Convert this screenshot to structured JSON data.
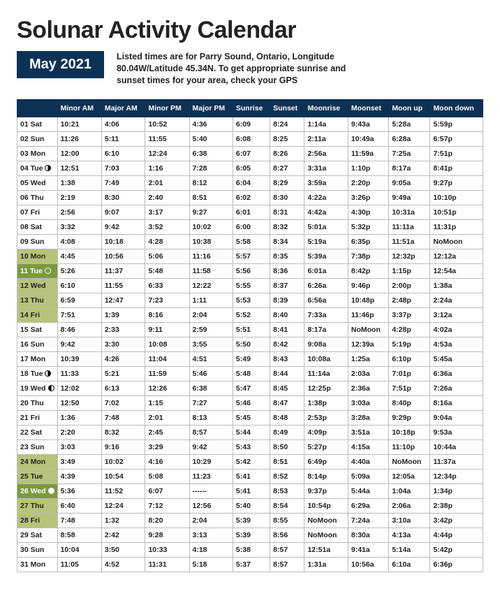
{
  "title": "Solunar Activity Calendar",
  "month_badge": "May 2021",
  "subtitle": {
    "line1": "Listed times are for Parry Sound, Ontario, Longitude",
    "line2": "80.04W/Latitude 45.34N.  To get appropriate sunrise and",
    "line3": "sunset times for your area, check your GPS"
  },
  "columns": [
    "",
    "Minor AM",
    "Major AM",
    "Minor PM",
    "Major PM",
    "Sunrise",
    "Sunset",
    "Moonrise",
    "Moonset",
    "Moon up",
    "Moon down"
  ],
  "rows": [
    {
      "day": "01 Sat",
      "phase": "",
      "hl": "",
      "c": [
        "10:21",
        "4:06",
        "10:52",
        "4:36",
        "6:09",
        "8:24",
        "1:14a",
        "9:43a",
        "5:28a",
        "5:59p"
      ]
    },
    {
      "day": "02 Sun",
      "phase": "",
      "hl": "",
      "c": [
        "11:26",
        "5:11",
        "11:55",
        "5:40",
        "6:08",
        "8:25",
        "2:11a",
        "10:49a",
        "6:28a",
        "6:57p"
      ]
    },
    {
      "day": "03 Mon",
      "phase": "",
      "hl": "",
      "c": [
        "12:00",
        "6:10",
        "12:24",
        "6:38",
        "6:07",
        "8:26",
        "2:56a",
        "11:59a",
        "7:25a",
        "7:51p"
      ]
    },
    {
      "day": "04 Tue",
      "phase": "last",
      "hl": "",
      "c": [
        "12:51",
        "7:03",
        "1:16",
        "7:28",
        "6:05",
        "8:27",
        "3:31a",
        "1:10p",
        "8:17a",
        "8:41p"
      ]
    },
    {
      "day": "05 Wed",
      "phase": "",
      "hl": "",
      "c": [
        "1:38",
        "7:49",
        "2:01",
        "8:12",
        "6:04",
        "8:29",
        "3:59a",
        "2:20p",
        "9:05a",
        "9:27p"
      ]
    },
    {
      "day": "06 Thu",
      "phase": "",
      "hl": "",
      "c": [
        "2:19",
        "8:30",
        "2:40",
        "8:51",
        "6:02",
        "8:30",
        "4:22a",
        "3:26p",
        "9:49a",
        "10:10p"
      ]
    },
    {
      "day": "07 Fri",
      "phase": "",
      "hl": "",
      "c": [
        "2:56",
        "9:07",
        "3:17",
        "9:27",
        "6:01",
        "8:31",
        "4:42a",
        "4:30p",
        "10:31a",
        "10:51p"
      ]
    },
    {
      "day": "08 Sat",
      "phase": "",
      "hl": "",
      "c": [
        "3:32",
        "9:42",
        "3:52",
        "10:02",
        "6:00",
        "8:32",
        "5:01a",
        "5:32p",
        "11:11a",
        "11:31p"
      ]
    },
    {
      "day": "09 Sun",
      "phase": "",
      "hl": "",
      "c": [
        "4:08",
        "10:18",
        "4:28",
        "10:38",
        "5:58",
        "8:34",
        "5:19a",
        "6:35p",
        "11:51a",
        "NoMoon"
      ]
    },
    {
      "day": "10 Mon",
      "phase": "",
      "hl": "light",
      "c": [
        "4:45",
        "10:56",
        "5:06",
        "11:16",
        "5:57",
        "8:35",
        "5:39a",
        "7:38p",
        "12:32p",
        "12:12a"
      ]
    },
    {
      "day": "11 Tue",
      "phase": "new",
      "hl": "dark",
      "c": [
        "5:26",
        "11:37",
        "5:48",
        "11:58",
        "5:56",
        "8:36",
        "6:01a",
        "8:42p",
        "1:15p",
        "12:54a"
      ]
    },
    {
      "day": "12 Wed",
      "phase": "",
      "hl": "light",
      "c": [
        "6:10",
        "11:55",
        "6:33",
        "12:22",
        "5:55",
        "8:37",
        "6:26a",
        "9:46p",
        "2:00p",
        "1:38a"
      ]
    },
    {
      "day": "13 Thu",
      "phase": "",
      "hl": "light",
      "c": [
        "6:59",
        "12:47",
        "7:23",
        "1:11",
        "5:53",
        "8:39",
        "6:56a",
        "10:48p",
        "2:48p",
        "2:24a"
      ]
    },
    {
      "day": "14 Fri",
      "phase": "",
      "hl": "light",
      "c": [
        "7:51",
        "1:39",
        "8:16",
        "2:04",
        "5:52",
        "8:40",
        "7:33a",
        "11:46p",
        "3:37p",
        "3:12a"
      ]
    },
    {
      "day": "15 Sat",
      "phase": "",
      "hl": "",
      "c": [
        "8:46",
        "2:33",
        "9:11",
        "2:59",
        "5:51",
        "8:41",
        "8:17a",
        "NoMoon",
        "4:28p",
        "4:02a"
      ]
    },
    {
      "day": "16 Sun",
      "phase": "",
      "hl": "",
      "c": [
        "9:42",
        "3:30",
        "10:08",
        "3:55",
        "5:50",
        "8:42",
        "9:08a",
        "12:39a",
        "5:19p",
        "4:53a"
      ]
    },
    {
      "day": "17 Mon",
      "phase": "",
      "hl": "",
      "c": [
        "10:39",
        "4:26",
        "11:04",
        "4:51",
        "5:49",
        "8:43",
        "10:08a",
        "1:25a",
        "6:10p",
        "5:45a"
      ]
    },
    {
      "day": "18 Tue",
      "phase": "last",
      "hl": "",
      "c": [
        "11:33",
        "5:21",
        "11:59",
        "5:46",
        "5:48",
        "8:44",
        "11:14a",
        "2:03a",
        "7:01p",
        "6:36a"
      ]
    },
    {
      "day": "19 Wed",
      "phase": "first",
      "hl": "",
      "c": [
        "12:02",
        "6:13",
        "12:26",
        "6:38",
        "5:47",
        "8:45",
        "12:25p",
        "2:36a",
        "7:51p",
        "7:26a"
      ]
    },
    {
      "day": "20 Thu",
      "phase": "",
      "hl": "",
      "c": [
        "12:50",
        "7:02",
        "1:15",
        "7:27",
        "5:46",
        "8:47",
        "1:38p",
        "3:03a",
        "8:40p",
        "8:16a"
      ]
    },
    {
      "day": "21 Fri",
      "phase": "",
      "hl": "",
      "c": [
        "1:36",
        "7:48",
        "2:01",
        "8:13",
        "5:45",
        "8:48",
        "2:53p",
        "3:28a",
        "9:29p",
        "9:04a"
      ]
    },
    {
      "day": "22 Sat",
      "phase": "",
      "hl": "",
      "c": [
        "2:20",
        "8:32",
        "2:45",
        "8:57",
        "5:44",
        "8:49",
        "4:09p",
        "3:51a",
        "10:18p",
        "9:53a"
      ]
    },
    {
      "day": "23 Sun",
      "phase": "",
      "hl": "",
      "c": [
        "3:03",
        "9:16",
        "3:29",
        "9:42",
        "5:43",
        "8:50",
        "5:27p",
        "4:15a",
        "11:10p",
        "10:44a"
      ]
    },
    {
      "day": "24 Mon",
      "phase": "",
      "hl": "light",
      "c": [
        "3:49",
        "10:02",
        "4:16",
        "10:29",
        "5:42",
        "8:51",
        "6:49p",
        "4:40a",
        "NoMoon",
        "11:37a"
      ]
    },
    {
      "day": "25 Tue",
      "phase": "",
      "hl": "light",
      "c": [
        "4:39",
        "10:54",
        "5:08",
        "11:23",
        "5:41",
        "8:52",
        "8:14p",
        "5:09a",
        "12:05a",
        "12:34p"
      ]
    },
    {
      "day": "26 Wed",
      "phase": "full",
      "hl": "dark",
      "c": [
        "5:36",
        "11:52",
        "6:07",
        "------",
        "5:41",
        "8:53",
        "9:37p",
        "5:44a",
        "1:04a",
        "1:34p"
      ]
    },
    {
      "day": "27 Thu",
      "phase": "",
      "hl": "light",
      "c": [
        "6:40",
        "12:24",
        "7:12",
        "12:56",
        "5:40",
        "8:54",
        "10:54p",
        "6:29a",
        "2:06a",
        "2:38p"
      ]
    },
    {
      "day": "28 Fri",
      "phase": "",
      "hl": "light",
      "c": [
        "7:48",
        "1:32",
        "8:20",
        "2:04",
        "5:39",
        "8:55",
        "NoMoon",
        "7:24a",
        "3:10a",
        "3:42p"
      ]
    },
    {
      "day": "29 Sat",
      "phase": "",
      "hl": "",
      "c": [
        "8:58",
        "2:42",
        "9:28",
        "3:13",
        "5:39",
        "8:56",
        "NoMoon",
        "8:30a",
        "4:13a",
        "4:44p"
      ]
    },
    {
      "day": "30 Sun",
      "phase": "",
      "hl": "",
      "c": [
        "10:04",
        "3:50",
        "10:33",
        "4:18",
        "5:38",
        "8:57",
        "12:51a",
        "9:41a",
        "5:14a",
        "5:42p"
      ]
    },
    {
      "day": "31 Mon",
      "phase": "",
      "hl": "",
      "c": [
        "11:05",
        "4:52",
        "11:31",
        "5:18",
        "5:37",
        "8:57",
        "1:31a",
        "10:56a",
        "6:10a",
        "6:36p"
      ]
    }
  ]
}
